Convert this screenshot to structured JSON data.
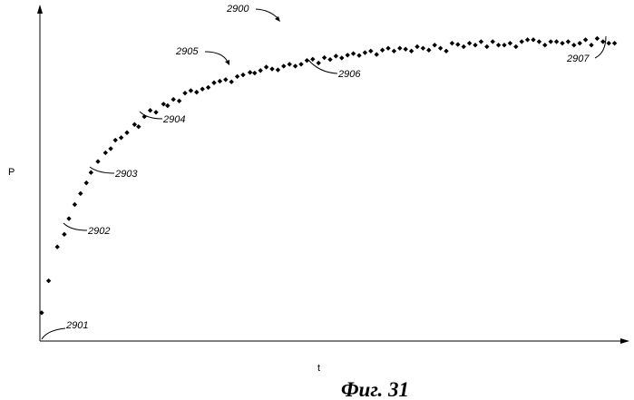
{
  "figure_label": "Фиг. 31",
  "chart_data": {
    "type": "scatter",
    "title": "",
    "xlabel": "t",
    "ylabel": "P",
    "grid": false,
    "legend": "none",
    "xlim": [
      0,
      100
    ],
    "ylim": [
      0,
      100
    ],
    "x": [
      0.3,
      1.5,
      3,
      4.2,
      5,
      6,
      7,
      8,
      8.8,
      10,
      11.3,
      12.2,
      13,
      14,
      15,
      16.3,
      17,
      18,
      19,
      20,
      21.3,
      22,
      23,
      24,
      25,
      26,
      27,
      28,
      29,
      30,
      31,
      32,
      33,
      34,
      35,
      36.2,
      37,
      38,
      39,
      40,
      41,
      42,
      43,
      44,
      45,
      46,
      47,
      48,
      49,
      50,
      51,
      52,
      53,
      54,
      55,
      56,
      57,
      58,
      59,
      60,
      61,
      62,
      63,
      64,
      65,
      66,
      67,
      68,
      69,
      70,
      71,
      72,
      73,
      74,
      75,
      76,
      77,
      78,
      79,
      80,
      81,
      82,
      83,
      84,
      85,
      86,
      87,
      88,
      89,
      90,
      91,
      92,
      93,
      94,
      95,
      96,
      97,
      98,
      99
    ],
    "y": [
      9,
      19.2,
      30,
      34,
      39,
      43.5,
      47,
      50.4,
      53.7,
      57.2,
      60,
      61.3,
      64,
      64.8,
      66.4,
      69,
      68.3,
      71.5,
      73.5,
      72.9,
      75.5,
      75,
      77,
      76.5,
      79,
      79.8,
      79.3,
      80.3,
      80.8,
      82.3,
      82.8,
      83.3,
      82.6,
      84.3,
      84.8,
      85.6,
      85.4,
      86.2,
      87.3,
      86.7,
      86.4,
      87.6,
      88.2,
      87.6,
      88.2,
      89.4,
      89.8,
      88.6,
      90.3,
      89.7,
      90.8,
      90.2,
      91.1,
      91.6,
      91,
      91.9,
      92.4,
      91.3,
      92.7,
      93.3,
      92.4,
      93.3,
      93,
      92.4,
      93.8,
      93.3,
      92.7,
      94.3,
      93.3,
      92.4,
      94.9,
      94.5,
      93.8,
      94.9,
      94.3,
      95.4,
      93.8,
      95.4,
      94.3,
      94.3,
      94.9,
      93.8,
      95.4,
      96,
      96,
      95.4,
      94.3,
      95.4,
      95.4,
      94.9,
      95.4,
      94.3,
      94.9,
      96,
      94.3,
      96.4,
      95.4,
      94.9,
      94.9
    ],
    "annotations": [
      "2900",
      "2901",
      "2902",
      "2903",
      "2904",
      "2905",
      "2906",
      "2907"
    ]
  }
}
